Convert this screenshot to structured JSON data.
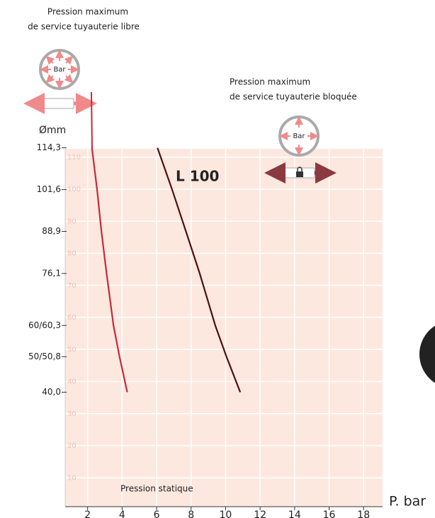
{
  "chart_data": {
    "type": "line",
    "annotations": {
      "free_title_1": "Pression maximum",
      "free_title_2": "de service tuyauterie libre",
      "blocked_title_1": "Pression maximum",
      "blocked_title_2": "de service tuyauterie bloquée",
      "icon_free": "Bar",
      "icon_blocked": "Bar",
      "curve_label": "L 100",
      "inner_label": "Pression statique"
    },
    "y2_label": "Ømm",
    "x_label": "P. bar",
    "xlim": [
      0.7,
      19.1
    ],
    "xticks": [
      2,
      4,
      6,
      8,
      10,
      12,
      14,
      16,
      18
    ],
    "ylim": [
      1,
      112.6
    ],
    "yticks": [
      10,
      20,
      30,
      40,
      50,
      60,
      70,
      80,
      90,
      100,
      110
    ],
    "y2lim": [
      5.2,
      114.0
    ],
    "y2ticks": [
      {
        "value": 114.3,
        "label": "114,3"
      },
      {
        "value": 101.6,
        "label": "101,6"
      },
      {
        "value": 88.9,
        "label": "88,9"
      },
      {
        "value": 76.1,
        "label": "76,1"
      },
      {
        "value": 60.3,
        "label": "60/60,3"
      },
      {
        "value": 50.8,
        "label": "50/50,8"
      },
      {
        "value": 40,
        "label": "40,0"
      }
    ],
    "grid": true,
    "background": "#fde8df",
    "series": [
      {
        "color": "#c8283c",
        "axis": "y2",
        "x": [
          2.25,
          2.55,
          2.8,
          3.1,
          3.5,
          3.85,
          4.3
        ],
        "values": [
          114.3,
          101.6,
          88.9,
          76.1,
          60.3,
          50.8,
          40
        ]
      },
      {
        "color": "#4a0f14",
        "axis": "y2",
        "x": [
          6.05,
          6.9,
          7.7,
          8.5,
          9.4,
          10.05,
          10.85
        ],
        "values": [
          114.3,
          101.6,
          88.9,
          76.1,
          60.3,
          50.8,
          40
        ]
      }
    ]
  }
}
